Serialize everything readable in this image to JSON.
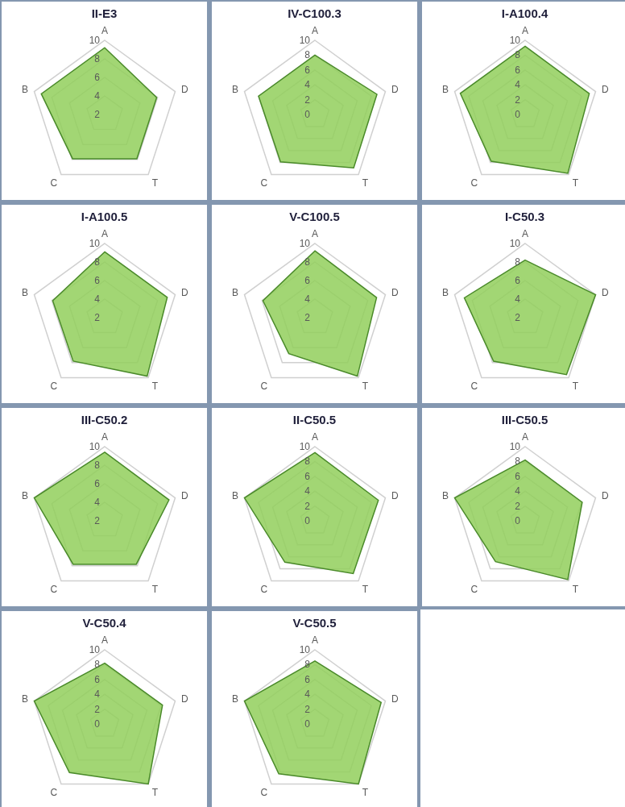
{
  "chart_data": [
    {
      "type": "radar",
      "title": "II-E3",
      "categories": [
        "A",
        "D",
        "T",
        "C",
        "B"
      ],
      "series": [
        {
          "color": "#92cf5c",
          "values": [
            9.2,
            7.9,
            7.9,
            7.9,
            9.2
          ]
        }
      ],
      "ylim": [
        2,
        10
      ],
      "yticks": [
        2,
        4,
        6,
        8,
        10
      ],
      "grid": true
    },
    {
      "type": "radar",
      "title": "IV-C100.3",
      "categories": [
        "A",
        "D",
        "T",
        "C",
        "B"
      ],
      "series": [
        {
          "color": "#92cf5c",
          "values": [
            8.0,
            8.8,
            8.9,
            7.9,
            8.0
          ]
        }
      ],
      "ylim": [
        0,
        10
      ],
      "yticks": [
        0,
        2,
        4,
        6,
        8,
        10
      ],
      "grid": true
    },
    {
      "type": "radar",
      "title": "I-A100.4",
      "categories": [
        "A",
        "D",
        "T",
        "C",
        "B"
      ],
      "series": [
        {
          "color": "#92cf5c",
          "values": [
            9.2,
            9.1,
            9.8,
            7.8,
            9.2
          ]
        }
      ],
      "ylim": [
        0,
        10
      ],
      "yticks": [
        0,
        2,
        4,
        6,
        8,
        10
      ],
      "grid": true
    },
    {
      "type": "radar",
      "title": "I-A100.5",
      "categories": [
        "A",
        "D",
        "T",
        "C",
        "B"
      ],
      "series": [
        {
          "color": "#92cf5c",
          "values": [
            9.1,
            9.1,
            9.8,
            7.8,
            7.9
          ]
        }
      ],
      "ylim": [
        2,
        10
      ],
      "yticks": [
        2,
        4,
        6,
        8,
        10
      ],
      "grid": true
    },
    {
      "type": "radar",
      "title": "V-C100.5",
      "categories": [
        "A",
        "D",
        "T",
        "C",
        "B"
      ],
      "series": [
        {
          "color": "#92cf5c",
          "values": [
            9.2,
            9.0,
            9.8,
            6.8,
            7.9
          ]
        }
      ],
      "ylim": [
        2,
        10
      ],
      "yticks": [
        2,
        4,
        6,
        8,
        10
      ],
      "grid": true
    },
    {
      "type": "radar",
      "title": "I-C50.3",
      "categories": [
        "A",
        "D",
        "T",
        "C",
        "B"
      ],
      "series": [
        {
          "color": "#92cf5c",
          "values": [
            8.2,
            10,
            9.6,
            7.8,
            8.9
          ]
        }
      ],
      "ylim": [
        2,
        10
      ],
      "yticks": [
        2,
        4,
        6,
        8,
        10
      ],
      "grid": true
    },
    {
      "type": "radar",
      "title": "III-C50.2",
      "categories": [
        "A",
        "D",
        "T",
        "C",
        "B"
      ],
      "series": [
        {
          "color": "#92cf5c",
          "values": [
            9.4,
            9.3,
            7.8,
            7.8,
            10
          ]
        }
      ],
      "ylim": [
        2,
        10
      ],
      "yticks": [
        2,
        4,
        6,
        8,
        10
      ],
      "grid": true
    },
    {
      "type": "radar",
      "title": "II-C50.5",
      "categories": [
        "A",
        "D",
        "T",
        "C",
        "B"
      ],
      "series": [
        {
          "color": "#92cf5c",
          "values": [
            9.2,
            9.0,
            8.8,
            6.9,
            10
          ]
        }
      ],
      "ylim": [
        0,
        10
      ],
      "yticks": [
        0,
        2,
        4,
        6,
        8,
        10
      ],
      "grid": true
    },
    {
      "type": "radar",
      "title": "III-C50.5",
      "categories": [
        "A",
        "D",
        "T",
        "C",
        "B"
      ],
      "series": [
        {
          "color": "#92cf5c",
          "values": [
            8.2,
            8.1,
            9.8,
            6.8,
            10
          ]
        }
      ],
      "ylim": [
        0,
        10
      ],
      "yticks": [
        0,
        2,
        4,
        6,
        8,
        10
      ],
      "grid": true
    },
    {
      "type": "radar",
      "title": "V-C50.4",
      "categories": [
        "A",
        "D",
        "T",
        "C",
        "B"
      ],
      "series": [
        {
          "color": "#92cf5c",
          "values": [
            8.2,
            8.2,
            10,
            8.1,
            10
          ]
        }
      ],
      "ylim": [
        0,
        10
      ],
      "yticks": [
        0,
        2,
        4,
        6,
        8,
        10
      ],
      "grid": true
    },
    {
      "type": "radar",
      "title": "V-C50.5",
      "categories": [
        "A",
        "D",
        "T",
        "C",
        "B"
      ],
      "series": [
        {
          "color": "#92cf5c",
          "values": [
            8.5,
            9.4,
            10,
            8.3,
            10
          ]
        }
      ],
      "ylim": [
        0,
        10
      ],
      "yticks": [
        0,
        2,
        4,
        6,
        8,
        10
      ],
      "grid": true
    }
  ]
}
